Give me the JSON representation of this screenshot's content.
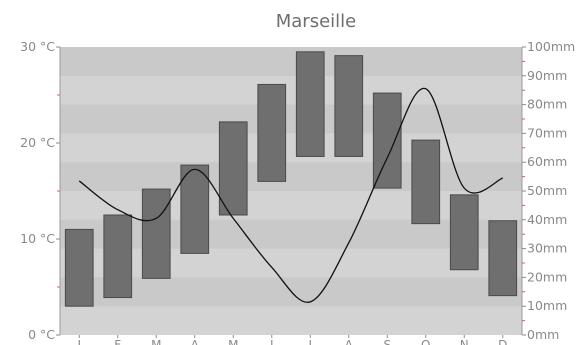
{
  "chart_data": {
    "type": "bar",
    "title": "Marseille",
    "categories": [
      "J",
      "F",
      "M",
      "A",
      "M",
      "J",
      "J",
      "A",
      "S",
      "O",
      "N",
      "D"
    ],
    "temperature_axis": {
      "ylim": [
        0,
        30
      ],
      "ticks": [
        {
          "value": 0,
          "label": "0 °C"
        },
        {
          "value": 10,
          "label": "10 °C"
        },
        {
          "value": 20,
          "label": "20 °C"
        },
        {
          "value": 30,
          "label": "30 °C"
        }
      ]
    },
    "precipitation_axis": {
      "ylim": [
        0,
        100
      ],
      "ticks": [
        {
          "value": 0,
          "label": "0mm"
        },
        {
          "value": 10,
          "label": "10mm"
        },
        {
          "value": 20,
          "label": "20mm"
        },
        {
          "value": 30,
          "label": "30mm"
        },
        {
          "value": 40,
          "label": "40mm"
        },
        {
          "value": 50,
          "label": "50mm"
        },
        {
          "value": 60,
          "label": "60mm"
        },
        {
          "value": 70,
          "label": "70mm"
        },
        {
          "value": 80,
          "label": "80mm"
        },
        {
          "value": 90,
          "label": "90mm"
        },
        {
          "value": 100,
          "label": "100mm"
        }
      ]
    },
    "temperature_ranges": [
      {
        "low": 3.0,
        "high": 11.0
      },
      {
        "low": 3.9,
        "high": 12.5
      },
      {
        "low": 5.9,
        "high": 15.2
      },
      {
        "low": 8.5,
        "high": 17.7
      },
      {
        "low": 12.5,
        "high": 22.2
      },
      {
        "low": 16.0,
        "high": 26.1
      },
      {
        "low": 18.6,
        "high": 29.5
      },
      {
        "low": 18.6,
        "high": 29.1
      },
      {
        "low": 15.3,
        "high": 25.2
      },
      {
        "low": 11.6,
        "high": 20.3
      },
      {
        "low": 6.8,
        "high": 14.6
      },
      {
        "low": 4.1,
        "high": 11.9
      }
    ],
    "precipitation": [
      53.5,
      43.5,
      40.5,
      57.5,
      40.5,
      23.5,
      11.5,
      32.0,
      61.5,
      85.5,
      51.0,
      54.5
    ],
    "colors": {
      "bar_fill": "#6f6f6f",
      "bar_stroke": "#4a4a4a",
      "plot_light": "#d3d3d3",
      "plot_dark": "#c9c9c9",
      "line": "#111111",
      "text": "#8a8a8a"
    }
  }
}
